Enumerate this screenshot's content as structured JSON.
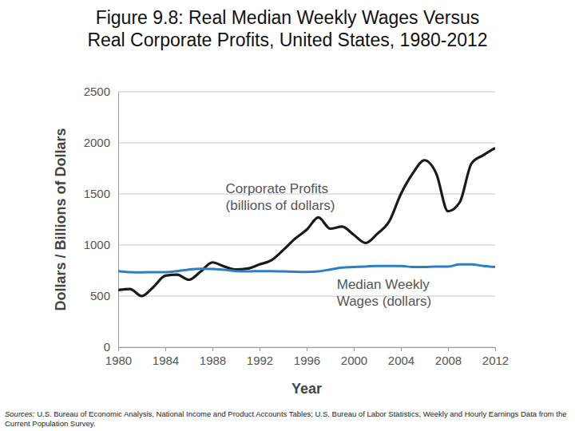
{
  "chart_data": {
    "type": "line",
    "title": [
      "Figure 9.8: Real Median Weekly Wages Versus",
      "Real Corporate Profits, United States, 1980-2012"
    ],
    "x_label": "Year",
    "y_label": "Dollars / Billions of Dollars",
    "x": [
      1980,
      1981,
      1982,
      1983,
      1984,
      1985,
      1986,
      1987,
      1988,
      1989,
      1990,
      1991,
      1992,
      1993,
      1994,
      1995,
      1996,
      1997,
      1998,
      1999,
      2000,
      2001,
      2002,
      2003,
      2004,
      2005,
      2006,
      2007,
      2008,
      2009,
      2010,
      2011,
      2012
    ],
    "series": [
      {
        "name": "Corporate Profits (billions of dollars)",
        "color": "#1a1a1a",
        "values": [
          560,
          570,
          500,
          590,
          700,
          710,
          660,
          740,
          830,
          790,
          760,
          770,
          810,
          850,
          950,
          1060,
          1150,
          1270,
          1160,
          1180,
          1100,
          1020,
          1110,
          1230,
          1500,
          1700,
          1830,
          1700,
          1330,
          1420,
          1800,
          1880,
          1950
        ]
      },
      {
        "name": "Median Weekly Wages (dollars)",
        "color": "#2e7fc1",
        "values": [
          745,
          735,
          733,
          735,
          735,
          745,
          760,
          768,
          765,
          758,
          745,
          742,
          745,
          745,
          742,
          738,
          736,
          742,
          760,
          780,
          785,
          790,
          795,
          795,
          795,
          785,
          785,
          790,
          790,
          810,
          810,
          795,
          785
        ]
      }
    ],
    "xlim": [
      1980,
      2012
    ],
    "ylim": [
      0,
      2500
    ],
    "xticks": [
      1980,
      1984,
      1988,
      1992,
      1996,
      2000,
      2004,
      2008,
      2012
    ],
    "yticks": [
      0,
      500,
      1000,
      1500,
      2000,
      2500
    ],
    "grid": true,
    "source": "Sources: U.S. Bureau of Economic Analysis, National Income and Product Accounts Tables; U.S. Bureau of Labor Statistics, Weekly and Hourly Earnings Data from the Current Population Survey."
  }
}
